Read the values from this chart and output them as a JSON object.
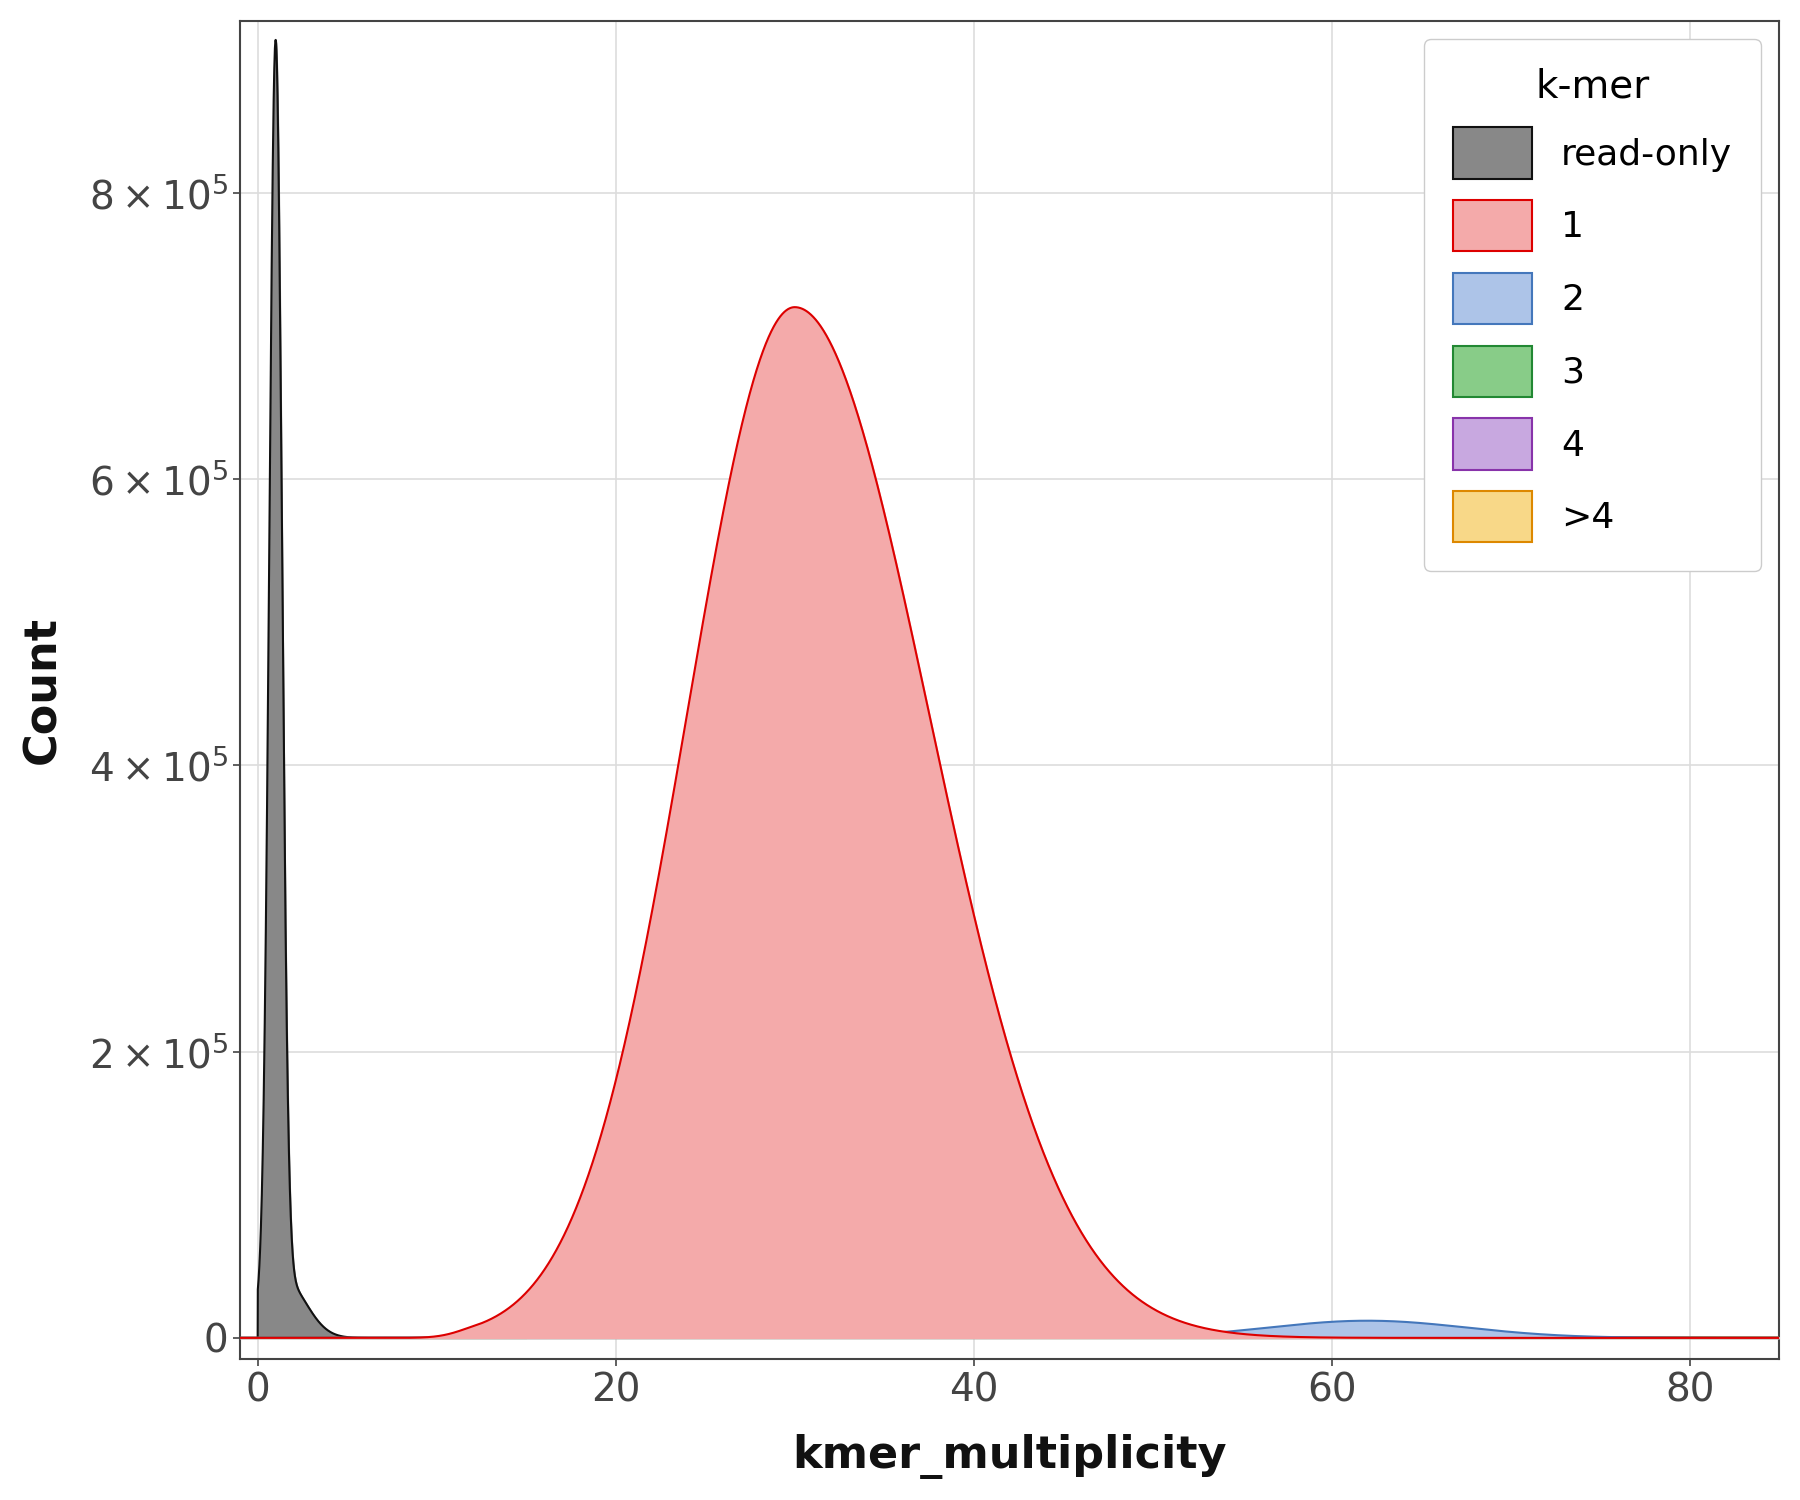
{
  "title": "",
  "xlabel": "kmer_multiplicity",
  "ylabel": "Count",
  "xlim": [
    -1,
    85
  ],
  "ylim": [
    -15000,
    920000
  ],
  "yticks": [
    0,
    200000,
    400000,
    600000,
    800000
  ],
  "xticks": [
    0,
    20,
    40,
    60,
    80
  ],
  "plot_bg": "#ffffff",
  "fig_bg": "#ffffff",
  "grid_color": "#dddddd",
  "series": {
    "read_only": {
      "color_fill": "#888888",
      "color_line": "#111111",
      "label": "read-only"
    },
    "cn1": {
      "color_fill": "#f4aaaa",
      "color_line": "#dd0000",
      "label": "1"
    },
    "cn2": {
      "color_fill": "#adc4e8",
      "color_line": "#4477bb",
      "label": "2"
    },
    "cn3": {
      "color_fill": "#88cc88",
      "color_line": "#228833",
      "label": "3"
    },
    "cn4": {
      "color_fill": "#c8a8e0",
      "color_line": "#8833aa",
      "label": "4"
    },
    "cn_gt4": {
      "color_fill": "#f8d888",
      "color_line": "#dd8800",
      "label": ">4"
    }
  }
}
